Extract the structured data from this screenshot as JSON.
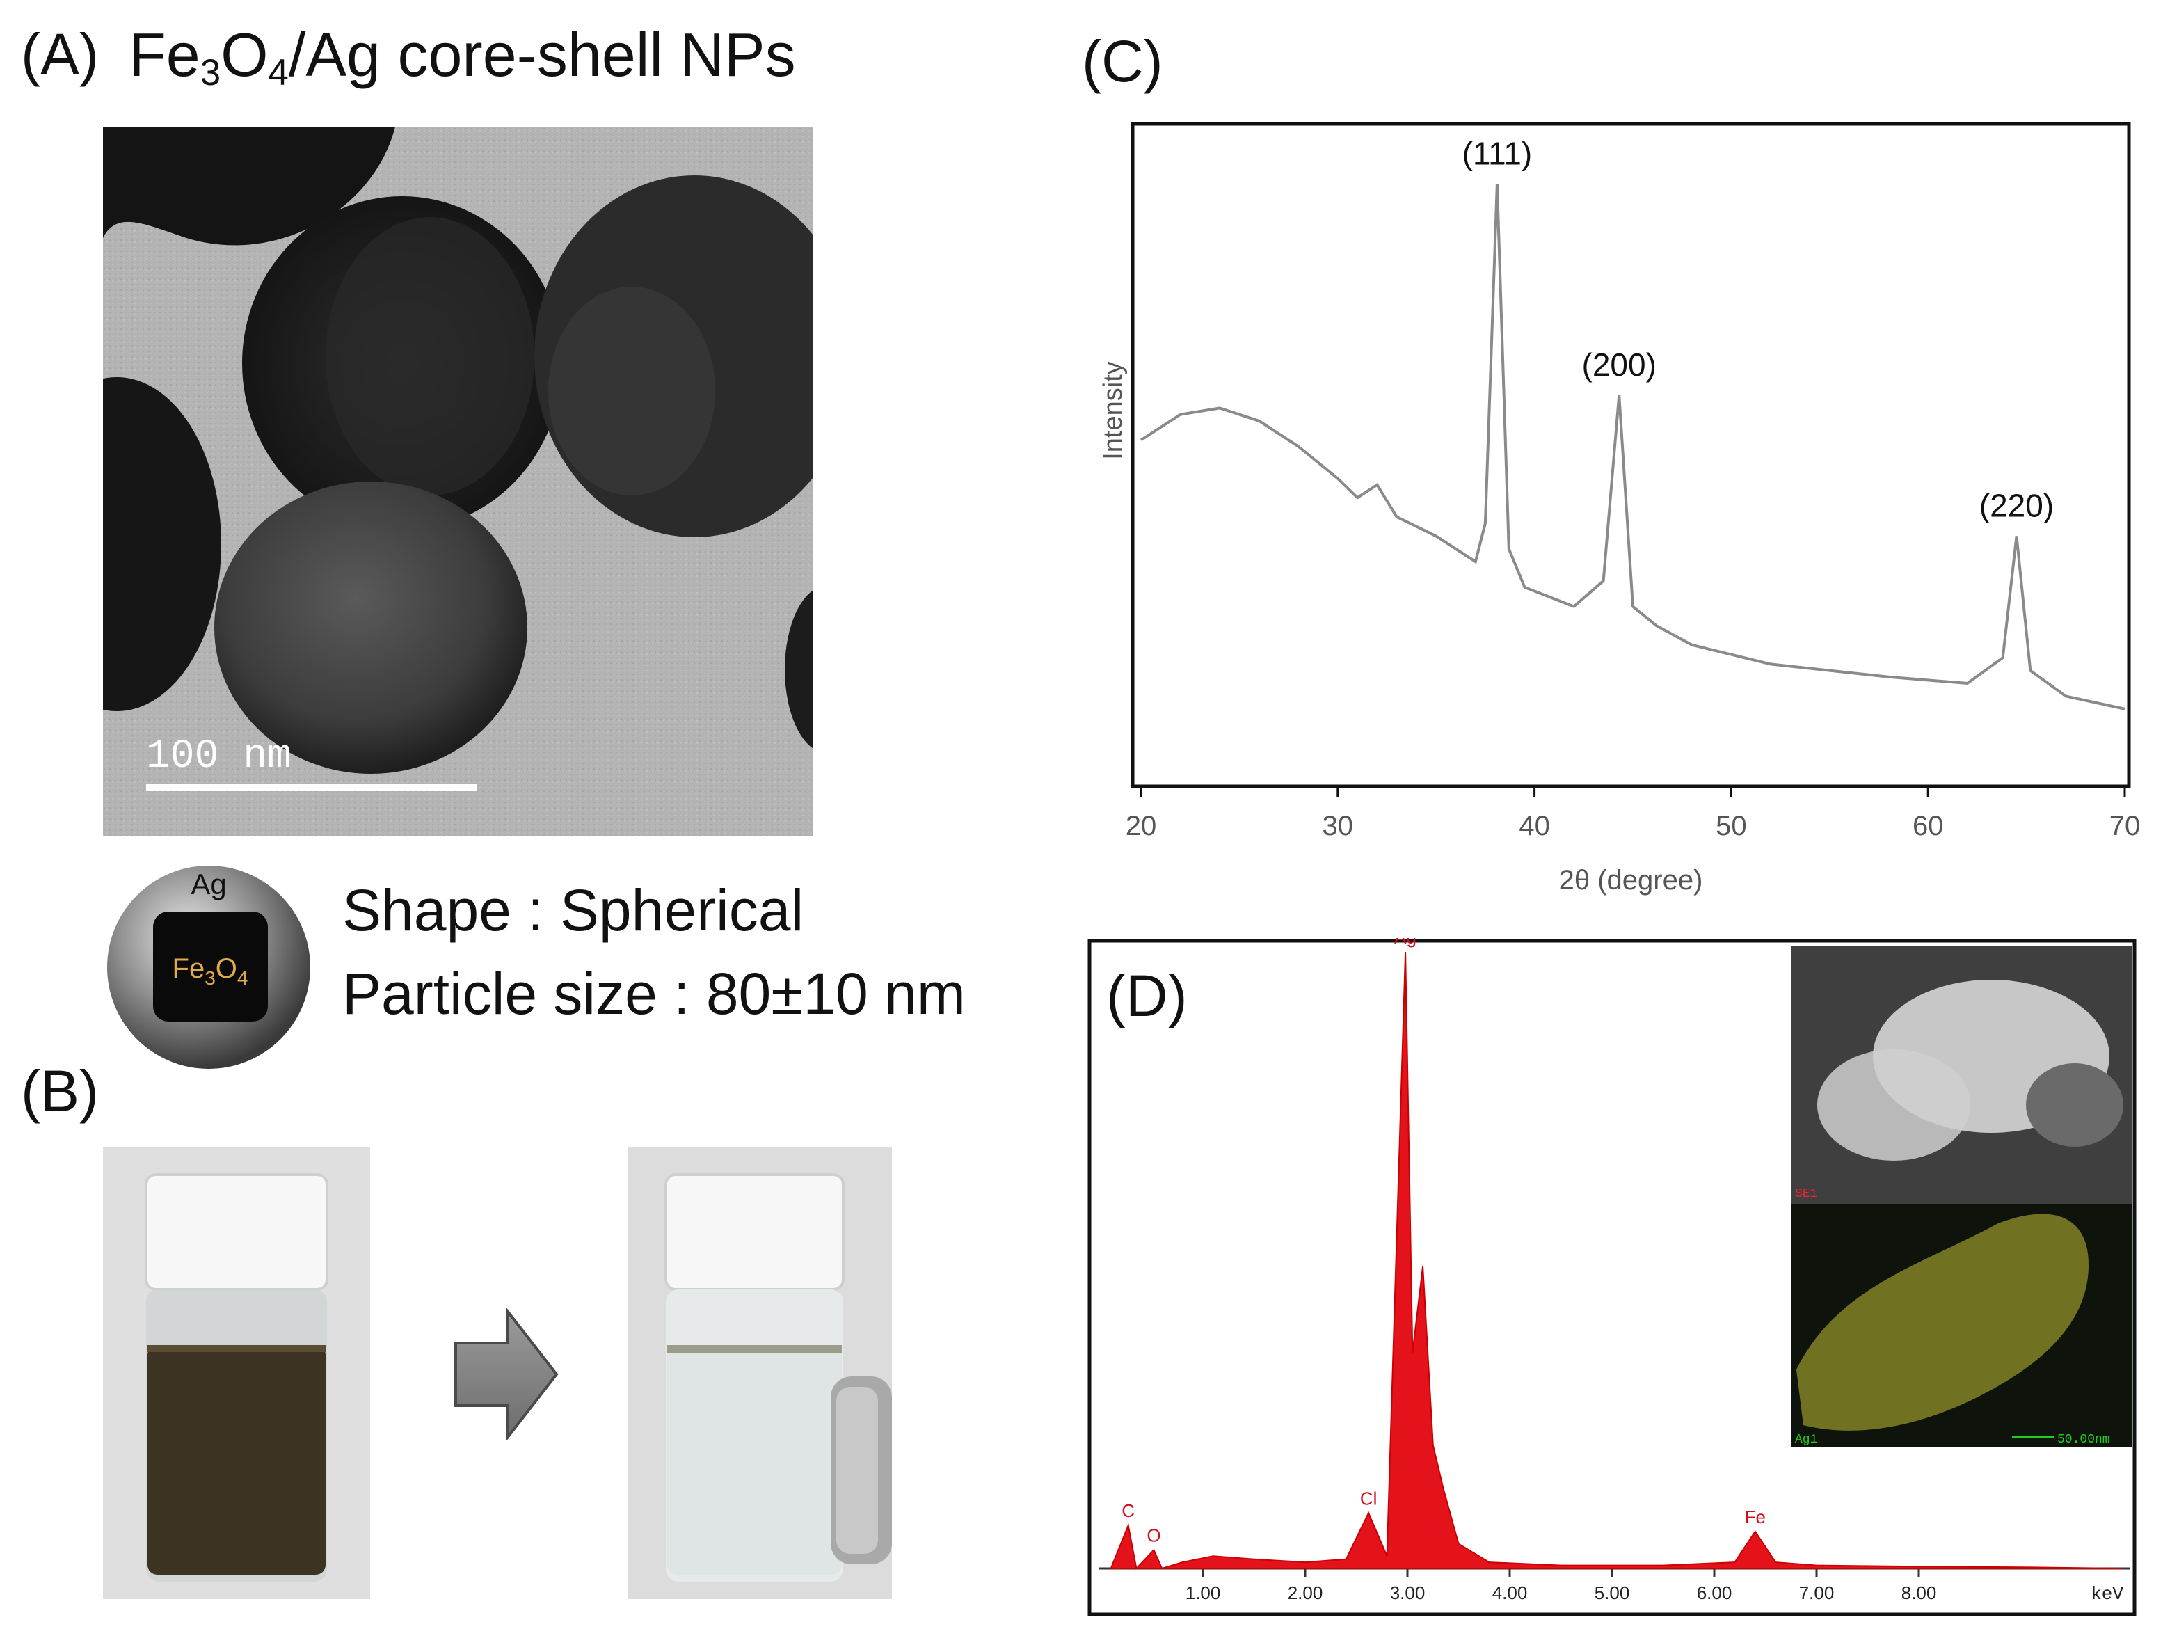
{
  "panelA": {
    "label": "(A)",
    "title_pre": "Fe",
    "title_sub1": "3",
    "title_mid": "O",
    "title_sub2": "4",
    "title_post": "/Ag core-shell NPs",
    "scale_bar": "100  nm",
    "schematic_shell": "Ag",
    "schematic_core_pre": "Fe",
    "schematic_core_sub1": "3",
    "schematic_core_mid": "O",
    "schematic_core_sub2": "4",
    "shape_text": "Shape : Spherical",
    "size_text": "Particle size : 80±10 nm"
  },
  "panelB": {
    "label": "(B)"
  },
  "panelC": {
    "label": "(C)"
  },
  "panelD": {
    "label": "(D)",
    "inset_top_label": "SE1",
    "inset_bottom_label": "Ag1",
    "inset_scale": "50.00nm"
  },
  "chart_data": [
    {
      "type": "line",
      "xlabel": "2θ (degree)",
      "ylabel": "Intensity",
      "xlim": [
        20,
        70
      ],
      "xticks": [
        "20",
        "30",
        "40",
        "50",
        "60",
        "70"
      ],
      "grid": false,
      "series": [
        {
          "x": [
            20,
            22,
            24,
            26,
            28,
            30,
            31,
            32,
            33,
            35,
            37,
            37.5,
            38.1,
            38.7,
            39.5,
            42,
            43.5,
            44.3,
            45,
            46.2,
            48,
            52,
            55,
            58,
            62,
            63.8,
            64.5,
            65.2,
            67,
            70
          ],
          "values": [
            0.53,
            0.57,
            0.58,
            0.56,
            0.52,
            0.47,
            0.44,
            0.46,
            0.41,
            0.38,
            0.34,
            0.4,
            0.93,
            0.36,
            0.3,
            0.27,
            0.31,
            0.6,
            0.27,
            0.24,
            0.21,
            0.18,
            0.17,
            0.16,
            0.15,
            0.19,
            0.38,
            0.17,
            0.13,
            0.11
          ]
        }
      ],
      "annotations": [
        {
          "text": "(111)",
          "x": 38.1
        },
        {
          "text": "(200)",
          "x": 44.3
        },
        {
          "text": "(220)",
          "x": 64.5
        }
      ]
    },
    {
      "type": "line",
      "xlabel": "keV",
      "xlim": [
        0,
        10
      ],
      "xticks": [
        "1.00",
        "2.00",
        "3.00",
        "4.00",
        "5.00",
        "6.00",
        "7.00",
        "8.00"
      ],
      "series": [
        {
          "x": [
            0.1,
            0.27,
            0.35,
            0.52,
            0.6,
            0.8,
            1.1,
            1.5,
            2.0,
            2.4,
            2.62,
            2.8,
            2.98,
            3.05,
            3.15,
            3.25,
            3.35,
            3.5,
            3.8,
            4.5,
            5.5,
            6.2,
            6.4,
            6.6,
            7.0,
            8.0,
            9.0,
            10.0
          ],
          "values": [
            0.0,
            0.07,
            0.0,
            0.03,
            0.0,
            0.01,
            0.02,
            0.015,
            0.01,
            0.015,
            0.09,
            0.02,
            1.0,
            0.35,
            0.49,
            0.2,
            0.13,
            0.04,
            0.01,
            0.005,
            0.005,
            0.01,
            0.06,
            0.01,
            0.005,
            0.003,
            0.002,
            0.0
          ]
        }
      ],
      "peak_labels": [
        {
          "text": "C",
          "x": 0.27
        },
        {
          "text": "O",
          "x": 0.52
        },
        {
          "text": "Cl",
          "x": 2.62
        },
        {
          "text": "Ag",
          "x": 2.98
        },
        {
          "text": "Fe",
          "x": 6.4
        }
      ]
    }
  ]
}
